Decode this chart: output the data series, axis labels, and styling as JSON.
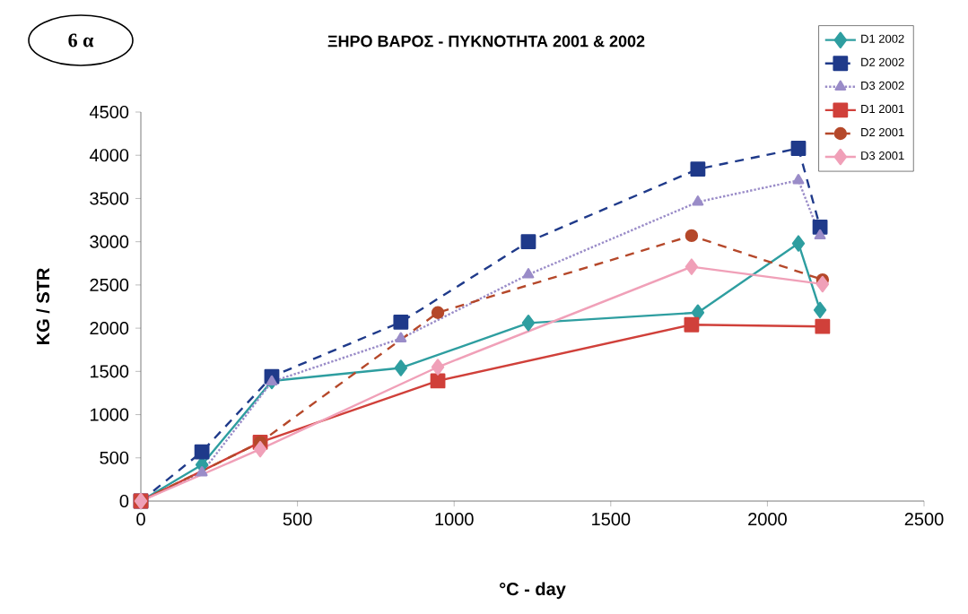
{
  "chart_data": {
    "type": "line",
    "title": "ΞΗΡΟ ΒΑΡΟΣ - ΠΥΚΝΟΤΗΤΑ 2001 & 2002",
    "xlabel": "°C - day",
    "ylabel": "KG / STR",
    "annotations": [
      "6 α"
    ],
    "xlim": [
      0,
      2500
    ],
    "xticks": [
      0,
      500,
      1000,
      1500,
      2000,
      2500
    ],
    "ylim": [
      0,
      4500
    ],
    "yticks": [
      0,
      500,
      1000,
      1500,
      2000,
      2500,
      3000,
      3500,
      4000,
      4500
    ],
    "legend": "top right",
    "series": [
      {
        "name": "D1 2002",
        "color": "#2e9ea0",
        "marker": "diamond",
        "line_style": "solid",
        "x": [
          0,
          195,
          418,
          830,
          1237,
          1778,
          2099,
          2168
        ],
        "values": [
          0,
          420,
          1390,
          1540,
          2060,
          2180,
          2980,
          2210
        ]
      },
      {
        "name": "D2 2002",
        "color": "#1f3a8a",
        "marker": "square",
        "line_style": "dashed",
        "x": [
          0,
          195,
          418,
          830,
          1237,
          1778,
          2099,
          2168
        ],
        "values": [
          0,
          570,
          1440,
          2070,
          3000,
          3840,
          4080,
          3170
        ]
      },
      {
        "name": "D3 2002",
        "color": "#9a8cc8",
        "marker": "triangle",
        "line_style": "dotted",
        "x": [
          0,
          195,
          418,
          830,
          1237,
          1778,
          2099,
          2168
        ],
        "values": [
          0,
          330,
          1380,
          1880,
          2620,
          3460,
          3710,
          3070
        ]
      },
      {
        "name": "D1 2001",
        "color": "#d0403a",
        "marker": "square",
        "line_style": "solid",
        "x": [
          0,
          381,
          948,
          1758,
          2176
        ],
        "values": [
          0,
          680,
          1390,
          2040,
          2020
        ]
      },
      {
        "name": "D2 2001",
        "color": "#b5482a",
        "marker": "circle",
        "line_style": "dashed",
        "x": [
          0,
          381,
          948,
          1758,
          2176
        ],
        "values": [
          0,
          680,
          2180,
          3070,
          2560
        ]
      },
      {
        "name": "D3 2001",
        "color": "#f0a0b8",
        "marker": "diamond",
        "line_style": "solid",
        "x": [
          0,
          381,
          948,
          1758,
          2176
        ],
        "values": [
          0,
          600,
          1550,
          2710,
          2510
        ]
      }
    ]
  }
}
